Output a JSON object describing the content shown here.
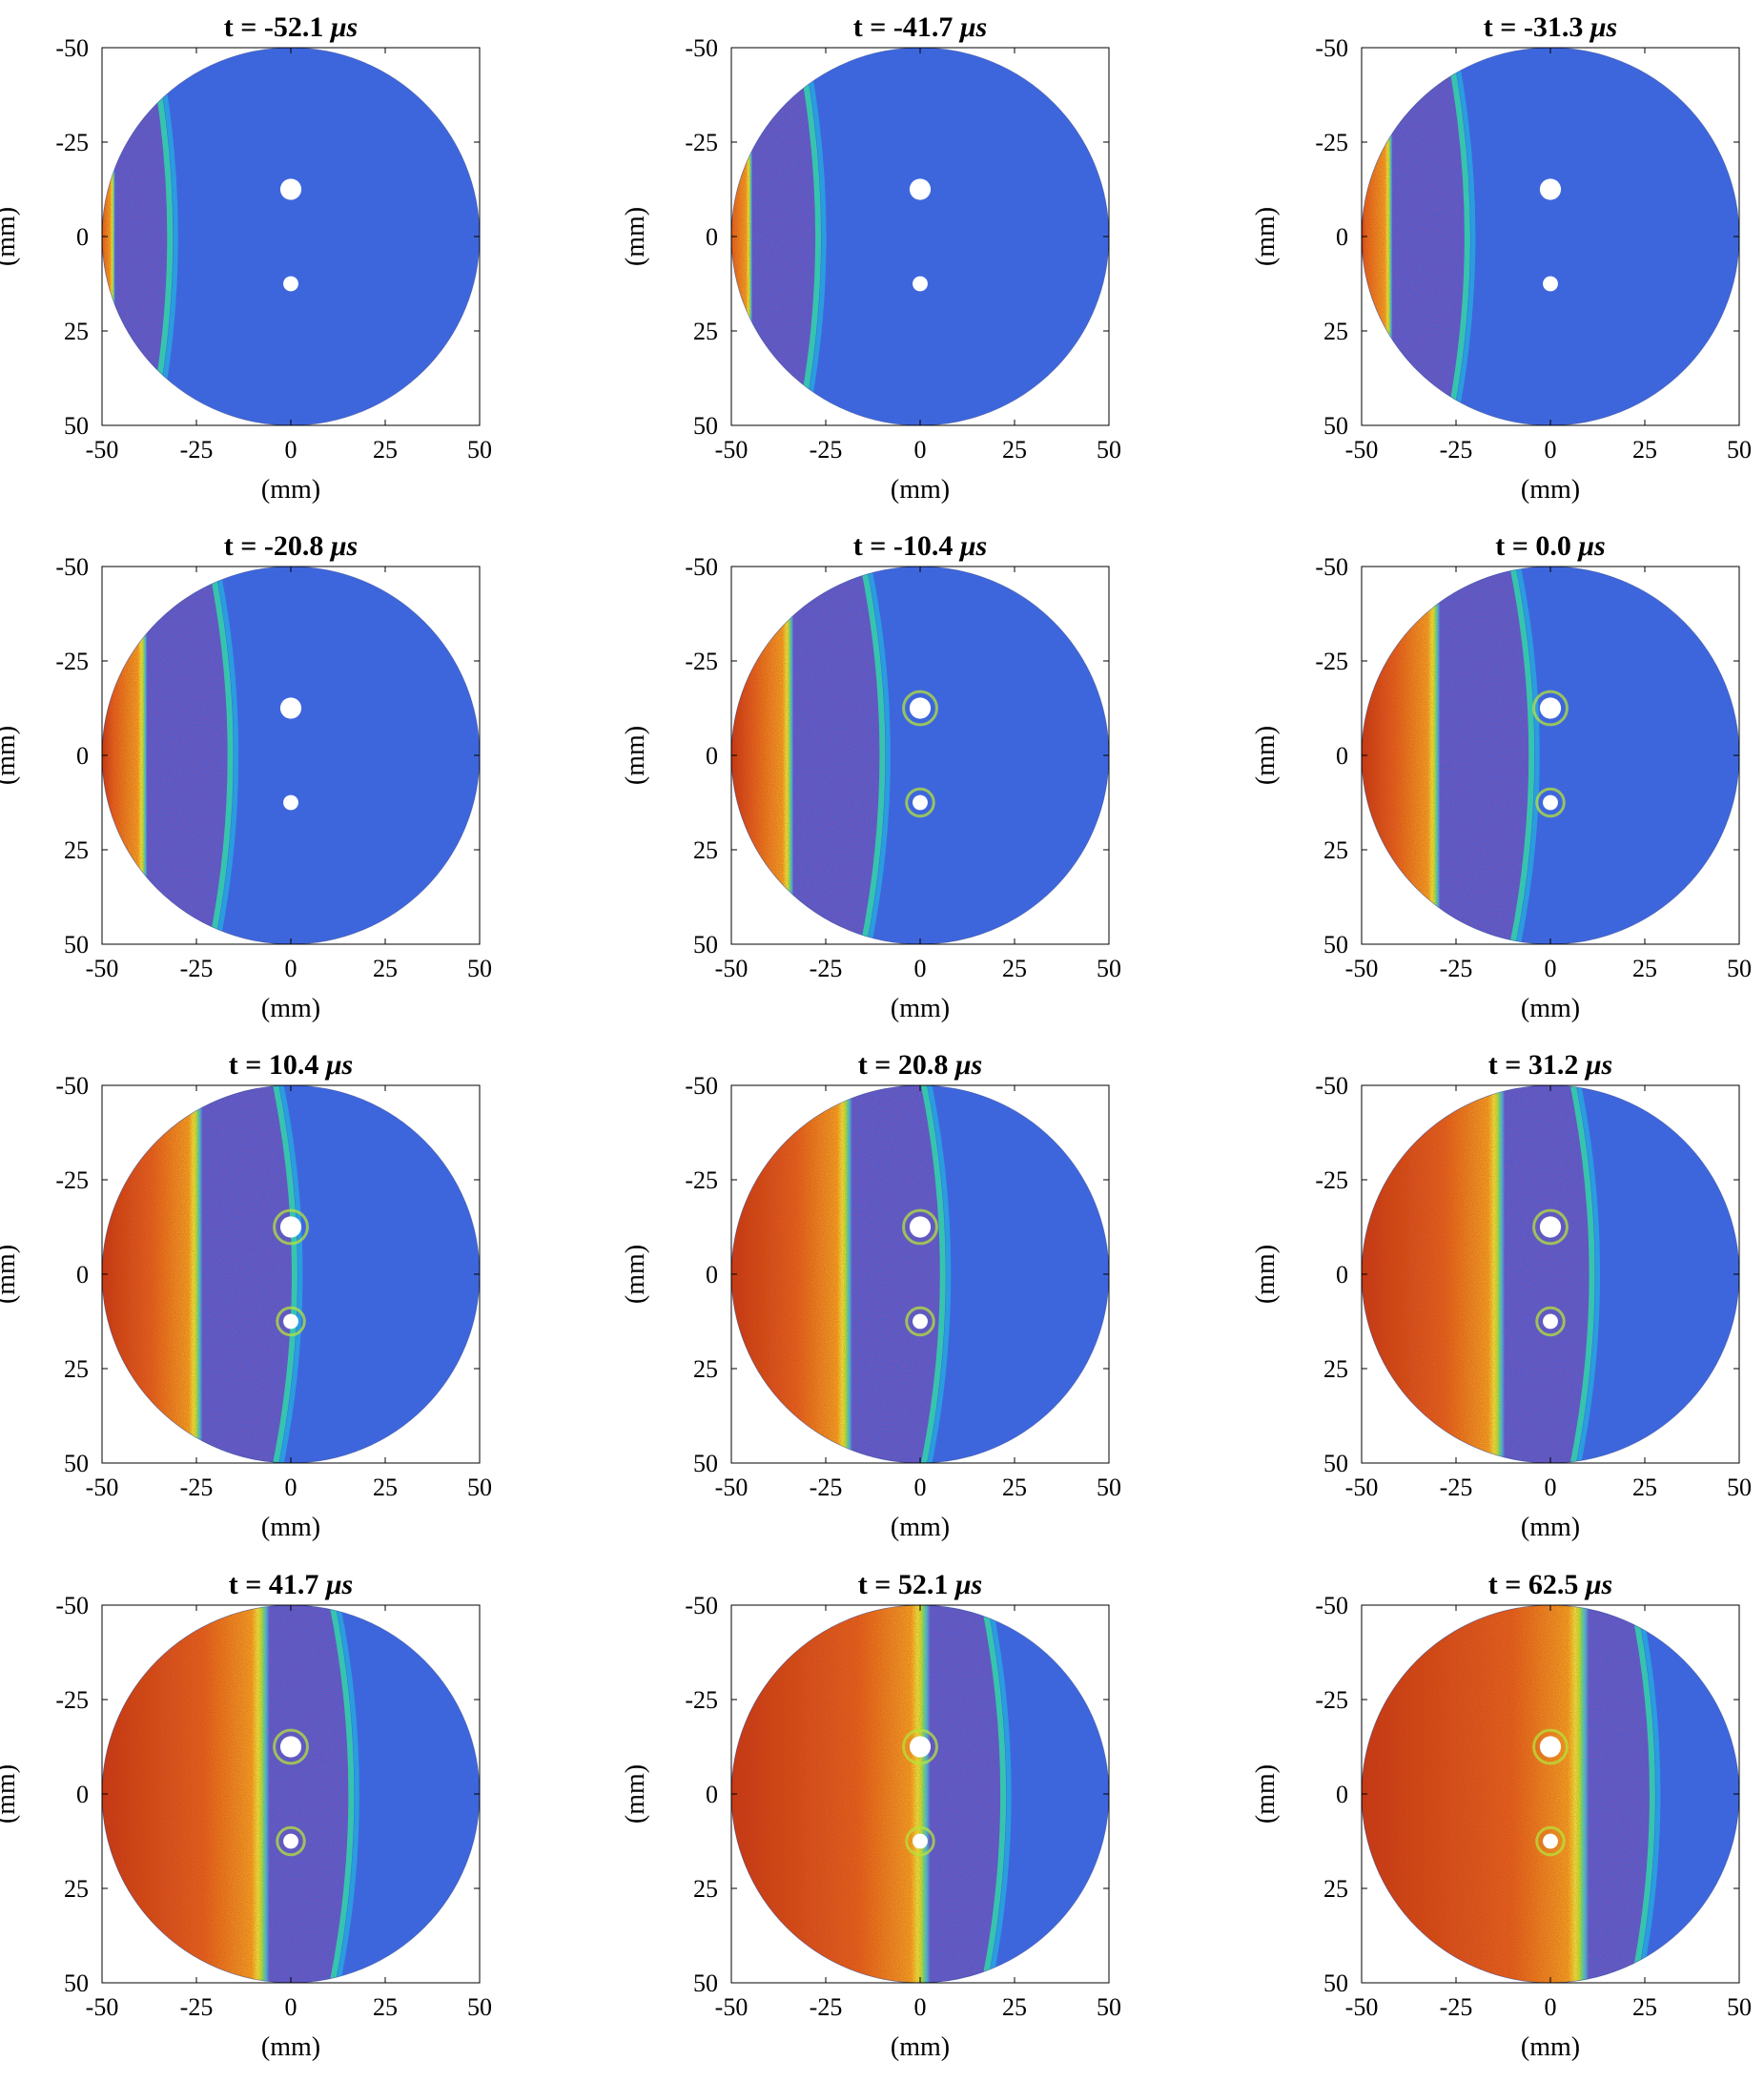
{
  "figure": {
    "shape": "disc",
    "colormap": [
      "#3a5fd6",
      "#22b3e0",
      "#33d6a8",
      "#b5e33a",
      "#f2e23a",
      "#f5a021",
      "#e6621e",
      "#c83a14"
    ],
    "background_color": "#3e66dc",
    "hole_color": "#ffffff"
  },
  "chart_data": [
    {
      "type": "heatmap",
      "title_prefix": "t = ",
      "time": "-52.1",
      "time_unit": "μs",
      "front_x": -32,
      "front_curvature": 10,
      "halo": false,
      "xlabel": "(mm)",
      "ylabel": "(mm)",
      "xlim": [
        -50,
        50
      ],
      "ylim": [
        -50,
        50
      ],
      "xticks": [
        "-50",
        "-25",
        "0",
        "25",
        "50"
      ],
      "yticks": [
        "-50",
        "-25",
        "0",
        "25",
        "50"
      ],
      "holes": [
        {
          "x": 0,
          "y": -12.5,
          "r": 2.8
        },
        {
          "x": 0,
          "y": 12.5,
          "r": 2.0
        }
      ]
    },
    {
      "type": "heatmap",
      "title_prefix": "t = ",
      "time": "-41.7",
      "time_unit": "μs",
      "front_x": -27,
      "front_curvature": 10,
      "halo": false,
      "xlabel": "(mm)",
      "ylabel": "(mm)",
      "xlim": [
        -50,
        50
      ],
      "ylim": [
        -50,
        50
      ],
      "xticks": [
        "-50",
        "-25",
        "0",
        "25",
        "50"
      ],
      "yticks": [
        "-50",
        "-25",
        "0",
        "25",
        "50"
      ],
      "holes": [
        {
          "x": 0,
          "y": -12.5,
          "r": 2.8
        },
        {
          "x": 0,
          "y": 12.5,
          "r": 2.0
        }
      ]
    },
    {
      "type": "heatmap",
      "title_prefix": "t = ",
      "time": "-31.3",
      "time_unit": "μs",
      "front_x": -22,
      "front_curvature": 10,
      "halo": false,
      "xlabel": "(mm)",
      "ylabel": "(mm)",
      "xlim": [
        -50,
        50
      ],
      "ylim": [
        -50,
        50
      ],
      "xticks": [
        "-50",
        "-25",
        "0",
        "25",
        "50"
      ],
      "yticks": [
        "-50",
        "-25",
        "0",
        "25",
        "50"
      ],
      "holes": [
        {
          "x": 0,
          "y": -12.5,
          "r": 2.8
        },
        {
          "x": 0,
          "y": 12.5,
          "r": 2.0
        }
      ]
    },
    {
      "type": "heatmap",
      "title_prefix": "t = ",
      "time": "-20.8",
      "time_unit": "μs",
      "front_x": -16,
      "front_curvature": 10,
      "halo": false,
      "xlabel": "(mm)",
      "ylabel": "(mm)",
      "xlim": [
        -50,
        50
      ],
      "ylim": [
        -50,
        50
      ],
      "xticks": [
        "-50",
        "-25",
        "0",
        "25",
        "50"
      ],
      "yticks": [
        "-50",
        "-25",
        "0",
        "25",
        "50"
      ],
      "holes": [
        {
          "x": 0,
          "y": -12.5,
          "r": 2.8
        },
        {
          "x": 0,
          "y": 12.5,
          "r": 2.0
        }
      ]
    },
    {
      "type": "heatmap",
      "title_prefix": "t = ",
      "time": "-10.4",
      "time_unit": "μs",
      "front_x": -10,
      "front_curvature": 10,
      "halo": true,
      "xlabel": "(mm)",
      "ylabel": "(mm)",
      "xlim": [
        -50,
        50
      ],
      "ylim": [
        -50,
        50
      ],
      "xticks": [
        "-50",
        "-25",
        "0",
        "25",
        "50"
      ],
      "yticks": [
        "-50",
        "-25",
        "0",
        "25",
        "50"
      ],
      "holes": [
        {
          "x": 0,
          "y": -12.5,
          "r": 2.8
        },
        {
          "x": 0,
          "y": 12.5,
          "r": 2.0
        }
      ]
    },
    {
      "type": "heatmap",
      "title_prefix": "t = ",
      "time": "0.0",
      "time_unit": "μs",
      "front_x": -5,
      "front_curvature": 10,
      "halo": true,
      "xlabel": "(mm)",
      "ylabel": "(mm)",
      "xlim": [
        -50,
        50
      ],
      "ylim": [
        -50,
        50
      ],
      "xticks": [
        "-50",
        "-25",
        "0",
        "25",
        "50"
      ],
      "yticks": [
        "-50",
        "-25",
        "0",
        "25",
        "50"
      ],
      "holes": [
        {
          "x": 0,
          "y": -12.5,
          "r": 2.8
        },
        {
          "x": 0,
          "y": 12.5,
          "r": 2.0
        }
      ]
    },
    {
      "type": "heatmap",
      "title_prefix": "t = ",
      "time": "10.4",
      "time_unit": "μs",
      "front_x": 1,
      "front_curvature": 10,
      "halo": true,
      "xlabel": "(mm)",
      "ylabel": "(mm)",
      "xlim": [
        -50,
        50
      ],
      "ylim": [
        -50,
        50
      ],
      "xticks": [
        "-50",
        "-25",
        "0",
        "25",
        "50"
      ],
      "yticks": [
        "-50",
        "-25",
        "0",
        "25",
        "50"
      ],
      "holes": [
        {
          "x": 0,
          "y": -12.5,
          "r": 2.8
        },
        {
          "x": 0,
          "y": 12.5,
          "r": 2.0
        }
      ]
    },
    {
      "type": "heatmap",
      "title_prefix": "t = ",
      "time": "20.8",
      "time_unit": "μs",
      "front_x": 6,
      "front_curvature": 10,
      "halo": true,
      "xlabel": "(mm)",
      "ylabel": "(mm)",
      "xlim": [
        -50,
        50
      ],
      "ylim": [
        -50,
        50
      ],
      "xticks": [
        "-50",
        "-25",
        "0",
        "25",
        "50"
      ],
      "yticks": [
        "-50",
        "-25",
        "0",
        "25",
        "50"
      ],
      "holes": [
        {
          "x": 0,
          "y": -12.5,
          "r": 2.8
        },
        {
          "x": 0,
          "y": 12.5,
          "r": 2.0
        }
      ]
    },
    {
      "type": "heatmap",
      "title_prefix": "t = ",
      "time": "31.2",
      "time_unit": "μs",
      "front_x": 11,
      "front_curvature": 10,
      "halo": true,
      "xlabel": "(mm)",
      "ylabel": "(mm)",
      "xlim": [
        -50,
        50
      ],
      "ylim": [
        -50,
        50
      ],
      "xticks": [
        "-50",
        "-25",
        "0",
        "25",
        "50"
      ],
      "yticks": [
        "-50",
        "-25",
        "0",
        "25",
        "50"
      ],
      "holes": [
        {
          "x": 0,
          "y": -12.5,
          "r": 2.8
        },
        {
          "x": 0,
          "y": 12.5,
          "r": 2.0
        }
      ]
    },
    {
      "type": "heatmap",
      "title_prefix": "t = ",
      "time": "41.7",
      "time_unit": "μs",
      "front_x": 16,
      "front_curvature": 10,
      "halo": true,
      "xlabel": "(mm)",
      "ylabel": "(mm)",
      "xlim": [
        -50,
        50
      ],
      "ylim": [
        -50,
        50
      ],
      "xticks": [
        "-50",
        "-25",
        "0",
        "25",
        "50"
      ],
      "yticks": [
        "-50",
        "-25",
        "0",
        "25",
        "50"
      ],
      "holes": [
        {
          "x": 0,
          "y": -12.5,
          "r": 2.8
        },
        {
          "x": 0,
          "y": 12.5,
          "r": 2.0
        }
      ]
    },
    {
      "type": "heatmap",
      "title_prefix": "t = ",
      "time": "52.1",
      "time_unit": "μs",
      "front_x": 22,
      "front_curvature": 10,
      "halo": true,
      "xlabel": "(mm)",
      "ylabel": "(mm)",
      "xlim": [
        -50,
        50
      ],
      "ylim": [
        -50,
        50
      ],
      "xticks": [
        "-50",
        "-25",
        "0",
        "25",
        "50"
      ],
      "yticks": [
        "-50",
        "-25",
        "0",
        "25",
        "50"
      ],
      "holes": [
        {
          "x": 0,
          "y": -12.5,
          "r": 2.8
        },
        {
          "x": 0,
          "y": 12.5,
          "r": 2.0
        }
      ]
    },
    {
      "type": "heatmap",
      "title_prefix": "t = ",
      "time": "62.5",
      "time_unit": "μs",
      "front_x": 27,
      "front_curvature": 10,
      "halo": true,
      "xlabel": "(mm)",
      "ylabel": "(mm)",
      "xlim": [
        -50,
        50
      ],
      "ylim": [
        -50,
        50
      ],
      "xticks": [
        "-50",
        "-25",
        "0",
        "25",
        "50"
      ],
      "yticks": [
        "-50",
        "-25",
        "0",
        "25",
        "50"
      ],
      "holes": [
        {
          "x": 0,
          "y": -12.5,
          "r": 2.8
        },
        {
          "x": 0,
          "y": 12.5,
          "r": 2.0
        }
      ]
    }
  ]
}
